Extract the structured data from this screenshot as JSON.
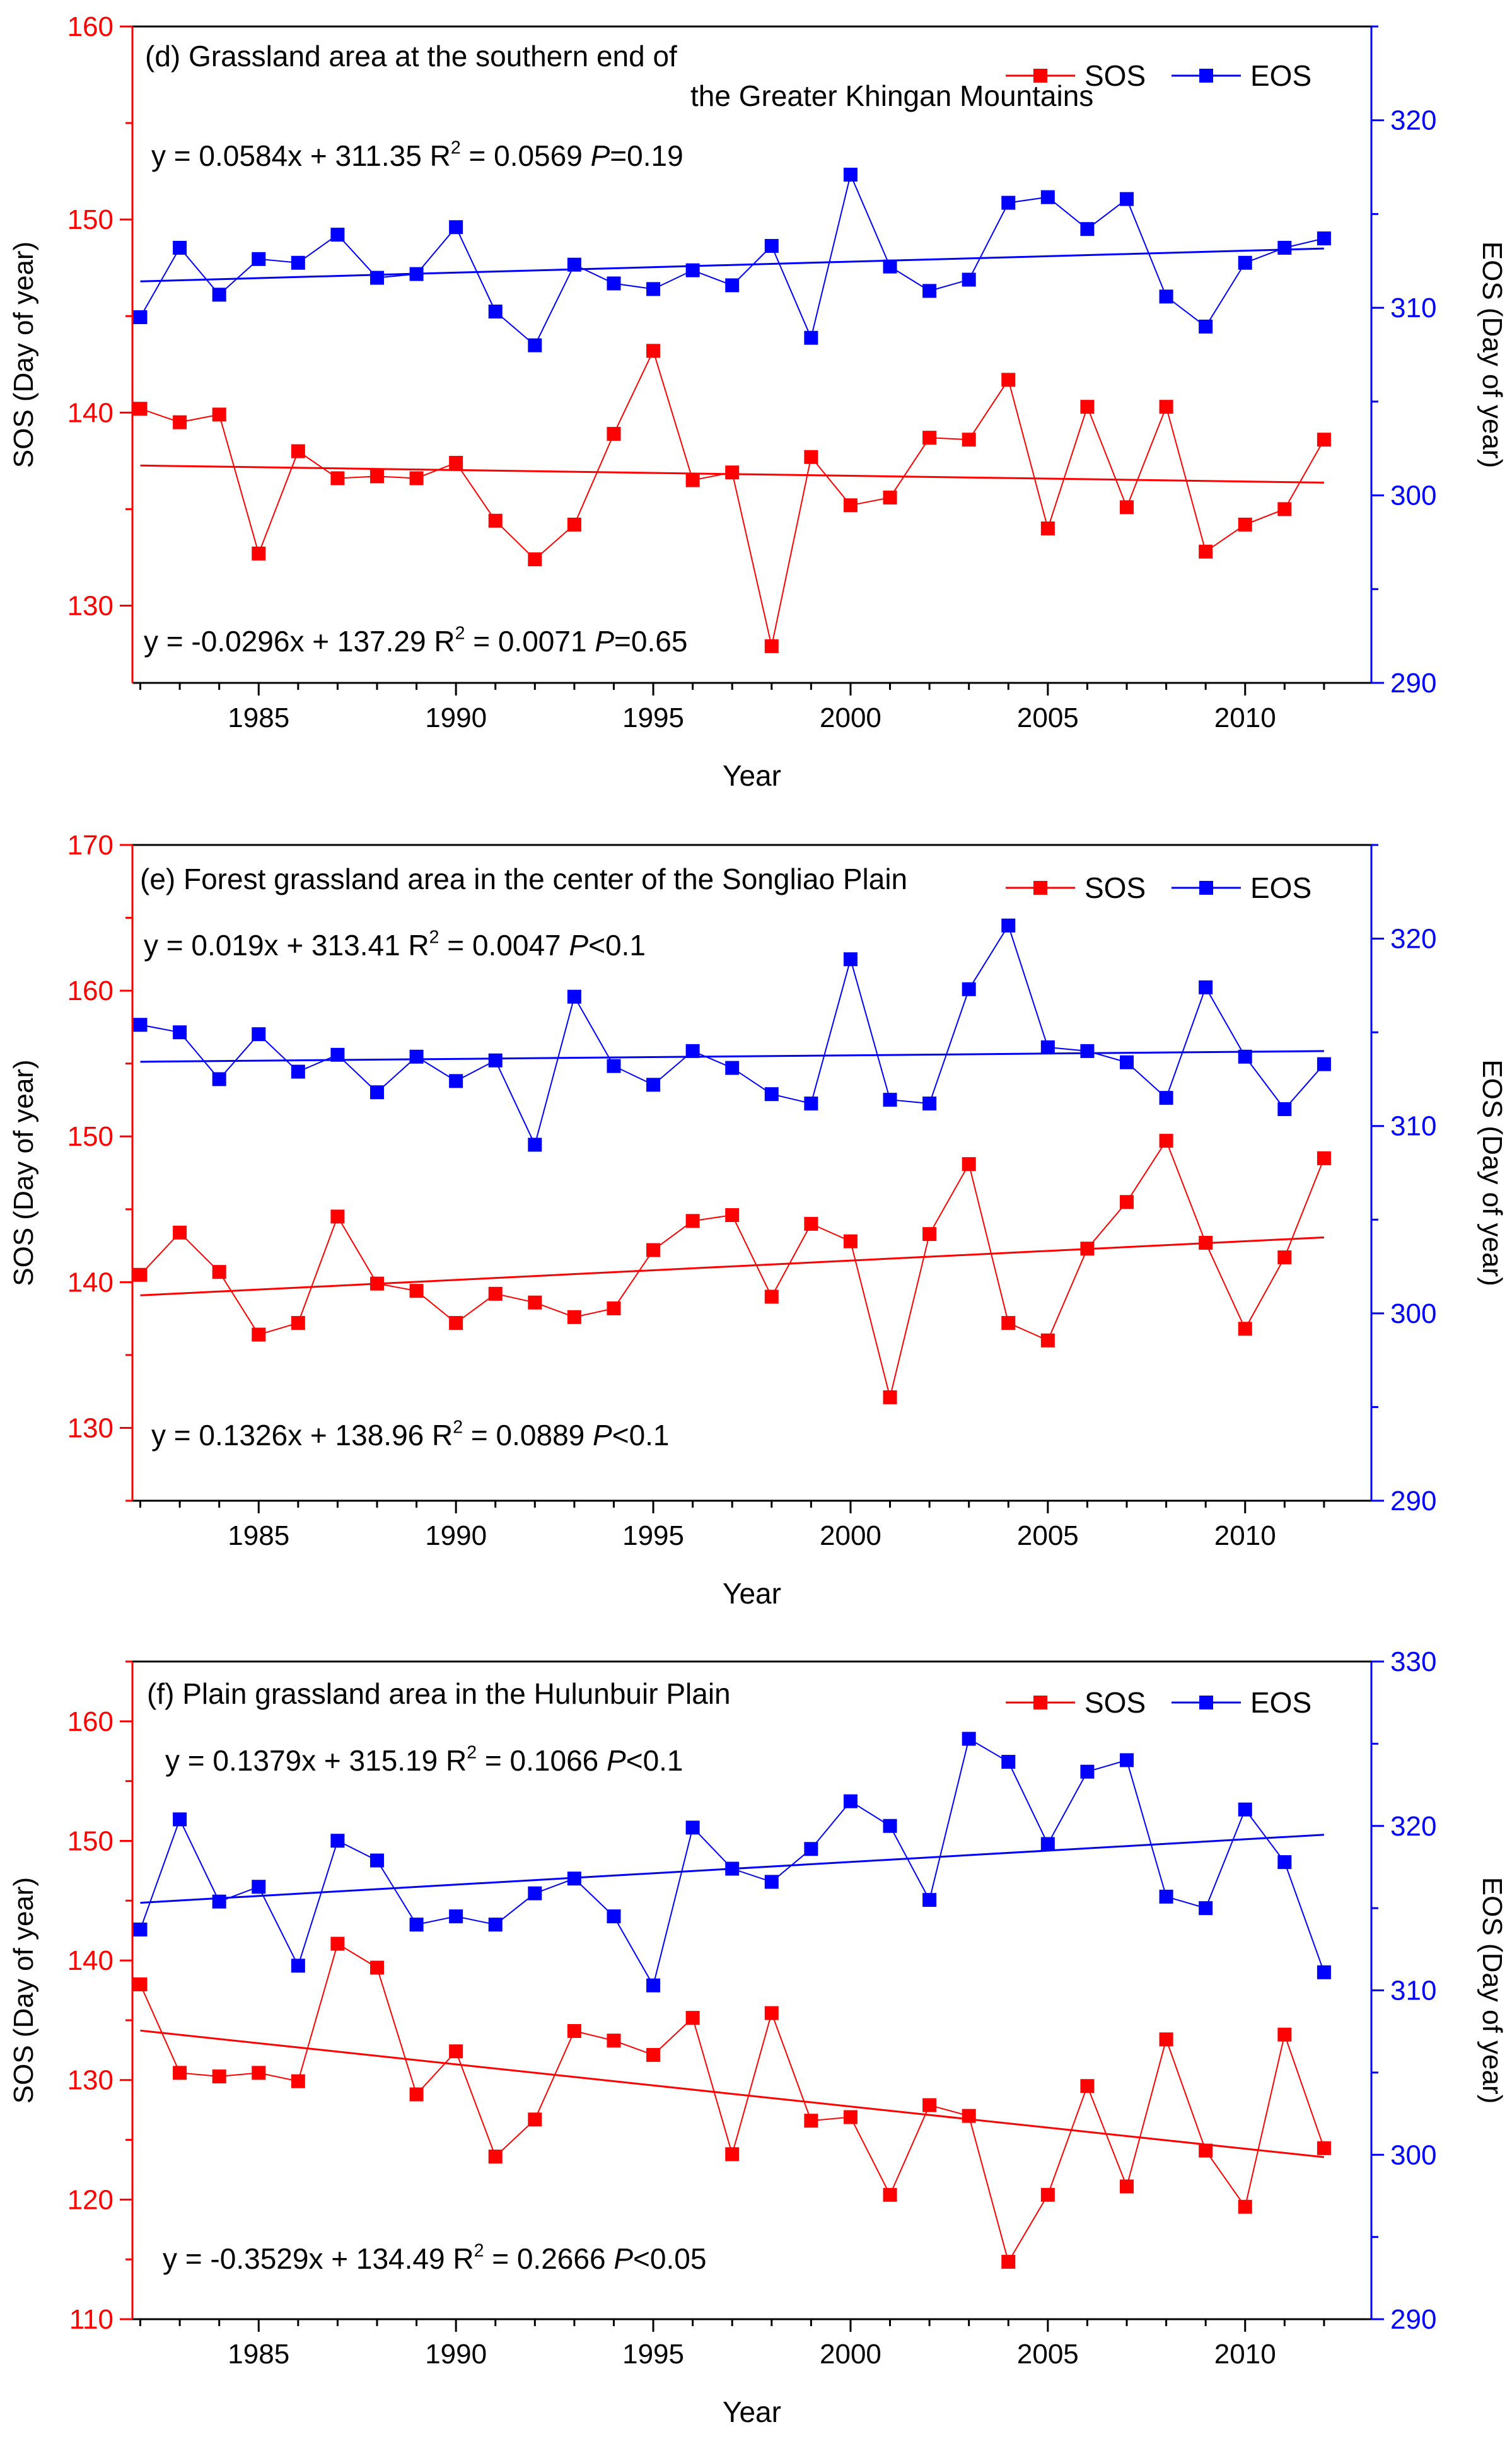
{
  "figure": {
    "x_tick_labels": [
      "1985",
      "1990",
      "1995",
      "2000",
      "2005",
      "2010"
    ],
    "colors": {
      "sos": "#ff0000",
      "eos": "#0000ff",
      "axis": "#000000"
    }
  },
  "chart_data": [
    {
      "type": "line",
      "title_lines": [
        "(d) Grassland area at the southern end of",
        "the Greater Khingan Mountains"
      ],
      "xlabel": "Year",
      "ylabel_left": "SOS (Day of year)",
      "ylabel_right": "EOS (Day of year)",
      "x": [
        1982,
        1983,
        1984,
        1985,
        1986,
        1987,
        1988,
        1989,
        1990,
        1991,
        1992,
        1993,
        1994,
        1995,
        1996,
        1997,
        1998,
        1999,
        2000,
        2001,
        2002,
        2003,
        2004,
        2005,
        2006,
        2007,
        2008,
        2009,
        2010,
        2011,
        2012
      ],
      "xlim": [
        1981.8,
        2013.2
      ],
      "ylim_left": [
        126,
        160
      ],
      "ylim_right": [
        290,
        325
      ],
      "yticks_left": [
        130,
        140,
        150,
        160
      ],
      "yticks_right": [
        290,
        300,
        310,
        320
      ],
      "legend": {
        "position": "top-right",
        "entries": [
          "SOS",
          "EOS"
        ]
      },
      "series": [
        {
          "name": "SOS",
          "axis": "left",
          "values": [
            140.2,
            139.5,
            139.9,
            132.7,
            138.0,
            136.6,
            136.7,
            136.6,
            137.4,
            134.4,
            132.4,
            134.2,
            138.9,
            143.2,
            136.5,
            136.9,
            127.9,
            137.7,
            135.2,
            135.6,
            138.7,
            138.6,
            141.7,
            134.0,
            140.3,
            135.1,
            140.3,
            132.8,
            134.2,
            135.0,
            138.6
          ],
          "fit": {
            "slope": -0.0296,
            "intercept": 137.29
          }
        },
        {
          "name": "EOS",
          "axis": "right",
          "values": [
            309.5,
            313.2,
            310.7,
            312.6,
            312.4,
            313.9,
            311.6,
            311.8,
            314.3,
            309.8,
            308.0,
            312.3,
            311.3,
            311.0,
            312.0,
            311.2,
            313.3,
            308.4,
            317.1,
            312.2,
            310.9,
            311.5,
            315.6,
            315.9,
            314.2,
            315.8,
            310.6,
            309.0,
            312.4,
            313.2,
            313.7
          ],
          "fit": {
            "slope": 0.0584,
            "intercept": 311.35
          }
        }
      ],
      "annotations": {
        "eos_eq": {
          "base": "y = 0.0584x + 311.35 R",
          "sup": "2",
          "mid": " = 0.0569 ",
          "p_italic": "P",
          "p_rest": "=0.19"
        },
        "sos_eq": {
          "base": "y = -0.0296x + 137.29 R",
          "sup": "2",
          "mid": " = 0.0071 ",
          "p_italic": "P",
          "p_rest": "=0.65"
        }
      }
    },
    {
      "type": "line",
      "title_lines": [
        "(e) Forest grassland area in the center of the Songliao Plain"
      ],
      "xlabel": "Year",
      "ylabel_left": "SOS (Day of year)",
      "ylabel_right": "EOS (Day of year)",
      "x": [
        1982,
        1983,
        1984,
        1985,
        1986,
        1987,
        1988,
        1989,
        1990,
        1991,
        1992,
        1993,
        1994,
        1995,
        1996,
        1997,
        1998,
        1999,
        2000,
        2001,
        2002,
        2003,
        2004,
        2005,
        2006,
        2007,
        2008,
        2009,
        2010,
        2011,
        2012
      ],
      "xlim": [
        1981.8,
        2013.2
      ],
      "ylim_left": [
        125,
        170
      ],
      "ylim_right": [
        290,
        325
      ],
      "yticks_left": [
        130,
        140,
        150,
        160,
        170
      ],
      "yticks_right": [
        290,
        300,
        310,
        320
      ],
      "legend": {
        "position": "top-right",
        "entries": [
          "SOS",
          "EOS"
        ]
      },
      "series": [
        {
          "name": "SOS",
          "axis": "left",
          "values": [
            140.5,
            143.4,
            140.7,
            136.4,
            137.2,
            144.5,
            139.9,
            139.4,
            137.2,
            139.2,
            138.6,
            137.6,
            138.2,
            142.2,
            144.2,
            144.6,
            139.0,
            144.0,
            142.8,
            132.1,
            143.3,
            148.1,
            137.2,
            136.0,
            142.3,
            145.5,
            149.7,
            142.7,
            136.8,
            141.7,
            148.5
          ],
          "fit": {
            "slope": 0.1326,
            "intercept": 138.96
          }
        },
        {
          "name": "EOS",
          "axis": "right",
          "values": [
            315.4,
            315.0,
            312.5,
            314.9,
            312.9,
            313.8,
            311.8,
            313.7,
            312.4,
            313.5,
            309.0,
            316.9,
            313.2,
            312.2,
            314.0,
            313.1,
            311.7,
            311.2,
            318.9,
            311.4,
            311.2,
            317.3,
            320.7,
            314.2,
            314.0,
            313.4,
            311.5,
            317.4,
            313.7,
            310.9,
            313.3
          ],
          "fit": {
            "slope": 0.019,
            "intercept": 313.41
          }
        }
      ],
      "annotations": {
        "eos_eq": {
          "base": "y = 0.019x + 313.41 R",
          "sup": "2",
          "mid": " = 0.0047 ",
          "p_italic": "P",
          "p_rest": "<0.1"
        },
        "sos_eq": {
          "base": "y = 0.1326x + 138.96 R",
          "sup": "2",
          "mid": " = 0.0889 ",
          "p_italic": "P",
          "p_rest": "<0.1"
        }
      }
    },
    {
      "type": "line",
      "title_lines": [
        "(f) Plain grassland area in the Hulunbuir Plain"
      ],
      "xlabel": "Year",
      "ylabel_left": "SOS (Day of year)",
      "ylabel_right": "EOS (Day of year)",
      "x": [
        1982,
        1983,
        1984,
        1985,
        1986,
        1987,
        1988,
        1989,
        1990,
        1991,
        1992,
        1993,
        1994,
        1995,
        1996,
        1997,
        1998,
        1999,
        2000,
        2001,
        2002,
        2003,
        2004,
        2005,
        2006,
        2007,
        2008,
        2009,
        2010,
        2011,
        2012
      ],
      "xlim": [
        1981.8,
        2013.2
      ],
      "ylim_left": [
        110,
        165
      ],
      "ylim_right": [
        290,
        330
      ],
      "yticks_left": [
        110,
        120,
        130,
        140,
        150,
        160
      ],
      "yticks_right": [
        290,
        300,
        310,
        320,
        330
      ],
      "legend": {
        "position": "top-right",
        "entries": [
          "SOS",
          "EOS"
        ]
      },
      "series": [
        {
          "name": "SOS",
          "axis": "left",
          "values": [
            138.0,
            130.6,
            130.3,
            130.6,
            129.9,
            141.4,
            139.4,
            128.8,
            132.4,
            123.6,
            126.7,
            134.1,
            133.3,
            132.1,
            135.2,
            123.8,
            135.6,
            126.6,
            126.9,
            120.4,
            127.9,
            127.0,
            114.8,
            120.4,
            129.5,
            121.1,
            133.4,
            124.1,
            119.4,
            133.8,
            124.3
          ],
          "fit": {
            "slope": -0.3529,
            "intercept": 134.49
          }
        },
        {
          "name": "EOS",
          "axis": "right",
          "values": [
            313.7,
            320.4,
            315.4,
            316.3,
            311.5,
            319.1,
            317.9,
            314.0,
            314.5,
            314.0,
            315.9,
            316.8,
            314.5,
            310.3,
            319.9,
            317.4,
            316.6,
            318.6,
            321.5,
            320.0,
            315.5,
            325.3,
            323.9,
            318.9,
            323.3,
            324.0,
            315.7,
            315.0,
            321.0,
            317.8,
            311.1
          ],
          "fit": {
            "slope": 0.1379,
            "intercept": 315.19
          }
        }
      ],
      "annotations": {
        "eos_eq": {
          "base": "y = 0.1379x + 315.19 R",
          "sup": "2",
          "mid": " = 0.1066 ",
          "p_italic": "P",
          "p_rest": "<0.1"
        },
        "sos_eq": {
          "base": "y = -0.3529x + 134.49 R",
          "sup": "2",
          "mid": " = 0.2666  ",
          "p_italic": "P",
          "p_rest": "<0.05"
        }
      }
    }
  ]
}
